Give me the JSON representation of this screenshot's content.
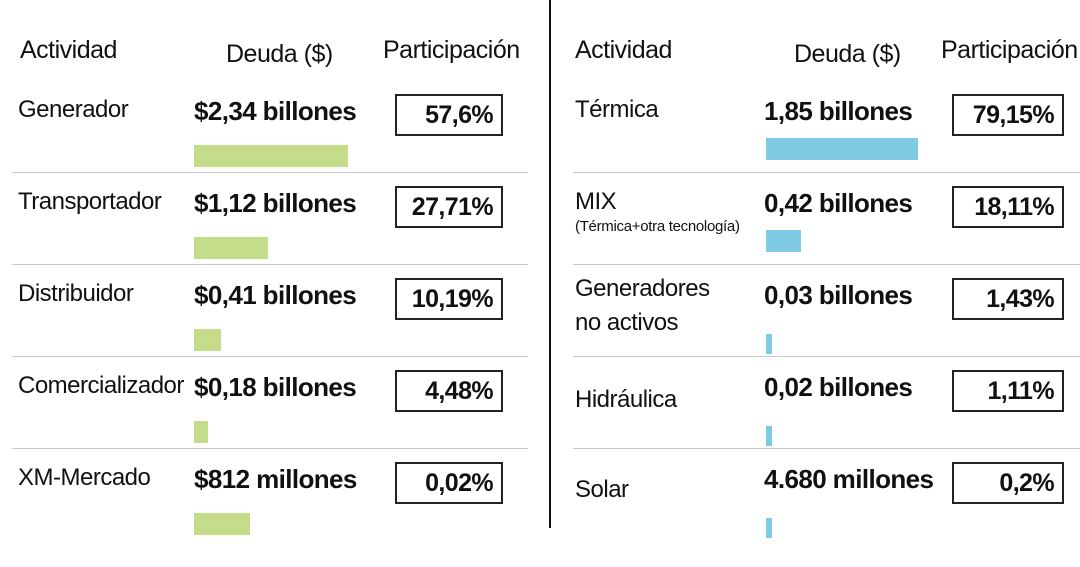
{
  "colors": {
    "left_bar": "#c5dc8a",
    "right_bar": "#7ecbe3"
  },
  "chart_data": [
    {
      "type": "table",
      "headers": {
        "activity": "Actividad",
        "debt": "Deuda ($)",
        "share": "Participación"
      },
      "rows": [
        {
          "label": "Generador",
          "sublabel": "",
          "debt_text": "$2,34 billones",
          "share_text": "57,6%",
          "share": 57.6
        },
        {
          "label": "Transportador",
          "sublabel": "",
          "debt_text": "$1,12 billones",
          "share_text": "27,71%",
          "share": 27.71
        },
        {
          "label": "Distribuidor",
          "sublabel": "",
          "debt_text": "$0,41 billones",
          "share_text": "10,19%",
          "share": 10.19
        },
        {
          "label": "Comercializador",
          "sublabel": "",
          "debt_text": "$0,18 billones",
          "share_text": "4,48%",
          "share": 4.48
        },
        {
          "label": "XM-Mercado",
          "sublabel": "",
          "debt_text": "$812 millones",
          "share_text": "0,02%",
          "share": 0.02
        }
      ]
    },
    {
      "type": "table",
      "headers": {
        "activity": "Actividad",
        "debt": "Deuda ($)",
        "share": "Participación"
      },
      "rows": [
        {
          "label": "Térmica",
          "sublabel": "",
          "debt_text": "1,85 billones",
          "share_text": "79,15%",
          "share": 79.15
        },
        {
          "label": "MIX",
          "sublabel": "(Térmica+otra tecnología)",
          "debt_text": "0,42 billones",
          "share_text": "18,11%",
          "share": 18.11
        },
        {
          "label": "Generadores no activos",
          "sublabel": "",
          "debt_text": "0,03 billones",
          "share_text": "1,43%",
          "share": 1.43
        },
        {
          "label": "Hidráulica",
          "sublabel": "",
          "debt_text": "0,02 billones",
          "share_text": "1,11%",
          "share": 1.11
        },
        {
          "label": "Solar",
          "sublabel": "",
          "debt_text": "4.680 millones",
          "share_text": "0,2%",
          "share": 0.2
        }
      ]
    }
  ]
}
